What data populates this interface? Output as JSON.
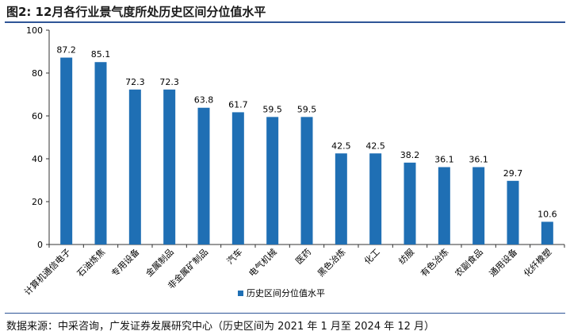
{
  "figure": {
    "label": "图2:",
    "title": "12月各行业景气度所处历史区间分位值水平"
  },
  "chart_data": {
    "type": "bar",
    "categories": [
      "计算机通信电子",
      "石油炼焦",
      "专用设备",
      "金属制品",
      "非金属矿制品",
      "汽车",
      "电气机械",
      "医药",
      "黑色冶炼",
      "化工",
      "纺服",
      "有色冶炼",
      "农副食品",
      "通用设备",
      "化纤橡塑"
    ],
    "series": [
      {
        "name": "历史区间分位值水平",
        "values": [
          87.2,
          85.1,
          72.3,
          72.3,
          63.8,
          61.7,
          59.5,
          59.5,
          42.5,
          42.5,
          38.2,
          36.1,
          36.1,
          29.7,
          10.6
        ]
      }
    ],
    "data_labels": [
      "87.2",
      "85.1",
      "72.3",
      "72.3",
      "63.8",
      "61.7",
      "59.5",
      "59.5",
      "42.5",
      "42.5",
      "38.2",
      "36.1",
      "36.1",
      "29.7",
      "10.6"
    ],
    "ylim": [
      0,
      100
    ],
    "yticks": [
      "0",
      "20",
      "40",
      "60",
      "80",
      "100"
    ],
    "grid": false,
    "legend": "bottom-center",
    "bar_color": "#1f6fb4"
  },
  "source": "数据来源：中采咨询，广发证券发展研究中心（历史区间为 2021 年 1 月至 2024 年 12 月）"
}
